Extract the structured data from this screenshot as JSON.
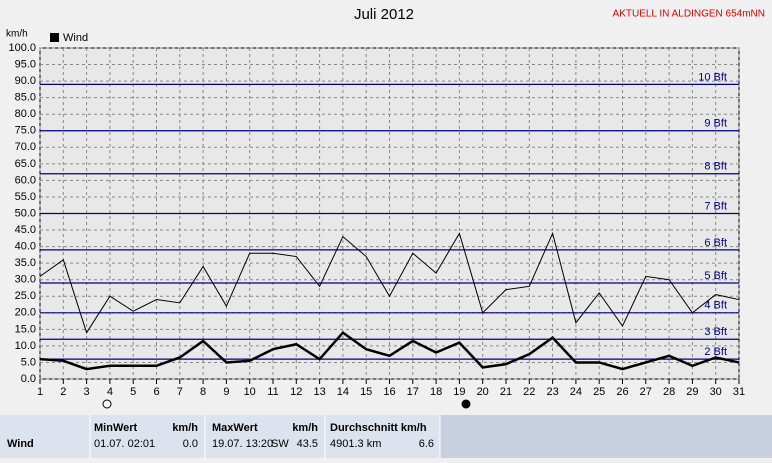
{
  "chart_data": {
    "type": "line",
    "title": "Juli 2012",
    "station": "AKTUELL IN ALDINGEN 654mNN",
    "y_label": "km/h",
    "x": [
      1,
      2,
      3,
      4,
      5,
      6,
      7,
      8,
      9,
      10,
      11,
      12,
      13,
      14,
      15,
      16,
      17,
      18,
      19,
      20,
      21,
      22,
      23,
      24,
      25,
      26,
      27,
      28,
      29,
      30,
      31
    ],
    "xlim": [
      1,
      31
    ],
    "xticks": [
      1,
      2,
      3,
      4,
      5,
      6,
      7,
      8,
      9,
      10,
      11,
      12,
      13,
      14,
      15,
      16,
      17,
      18,
      19,
      20,
      21,
      22,
      23,
      24,
      25,
      26,
      27,
      28,
      29,
      30,
      31
    ],
    "ylim": [
      0,
      100
    ],
    "yticks": [
      {
        "value": 0,
        "label": "0.0"
      },
      {
        "value": 5,
        "label": "5.0"
      },
      {
        "value": 10,
        "label": "10.0"
      },
      {
        "value": 15,
        "label": "15.0"
      },
      {
        "value": 20,
        "label": "20.0"
      },
      {
        "value": 25,
        "label": "25.0"
      },
      {
        "value": 30,
        "label": "30.0"
      },
      {
        "value": 35,
        "label": "35.0"
      },
      {
        "value": 40,
        "label": "40.0"
      },
      {
        "value": 45,
        "label": "45.0"
      },
      {
        "value": 50,
        "label": "50.0"
      },
      {
        "value": 55,
        "label": "55.0"
      },
      {
        "value": 60,
        "label": "60.0"
      },
      {
        "value": 65,
        "label": "65.0"
      },
      {
        "value": 70,
        "label": "70.0"
      },
      {
        "value": 75,
        "label": "75.0"
      },
      {
        "value": 80,
        "label": "80.0"
      },
      {
        "value": 85,
        "label": "85.0"
      },
      {
        "value": 90,
        "label": "90.0"
      },
      {
        "value": 95,
        "label": "95.0"
      },
      {
        "value": 100,
        "label": "100.0"
      }
    ],
    "grid": true,
    "reference_lines": [
      {
        "value": 6,
        "label": "2 Bft"
      },
      {
        "value": 12,
        "label": "3 Bft"
      },
      {
        "value": 20,
        "label": "4 Bft"
      },
      {
        "value": 29,
        "label": "5 Bft"
      },
      {
        "value": 39,
        "label": "6 Bft"
      },
      {
        "value": 50,
        "label": "7 Bft"
      },
      {
        "value": 62,
        "label": "8 Bft"
      },
      {
        "value": 75,
        "label": "9 Bft"
      },
      {
        "value": 89,
        "label": "10 Bft"
      }
    ],
    "reference_color": "#000080",
    "series": [
      {
        "color": "#000000",
        "width": 1,
        "values": [
          31,
          36,
          14,
          25,
          20.5,
          24,
          23,
          34,
          22,
          38,
          38,
          37,
          28,
          43,
          37,
          25,
          38,
          32,
          44,
          20,
          27,
          28,
          44,
          17,
          26,
          16,
          31,
          30,
          20,
          25.5,
          24
        ]
      },
      {
        "name": "Wind",
        "color": "#000000",
        "width": 2.5,
        "values": [
          6,
          5.5,
          3,
          4,
          4,
          4,
          6.5,
          11.5,
          5,
          5.5,
          9,
          10.5,
          6,
          14,
          9,
          7,
          11.5,
          8,
          11,
          3.5,
          4.5,
          7.5,
          12.5,
          5,
          5,
          3,
          5,
          7,
          4,
          6.5,
          5
        ]
      }
    ]
  },
  "stats": {
    "row_label": "Wind",
    "min": {
      "header": "MinWert",
      "unit": "km/h",
      "date": "01.07.  02:01",
      "value": "0.0"
    },
    "max": {
      "header": "MaxWert",
      "unit": "km/h",
      "date": "19.07.  13:20",
      "direction": "SW",
      "value": "43.5"
    },
    "avg": {
      "header": "Durchschnitt km/h",
      "distance": "4901.3 km",
      "value": "6.6"
    }
  }
}
